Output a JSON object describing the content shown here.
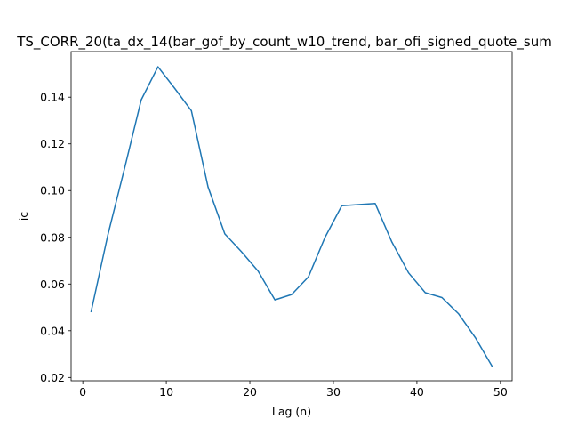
{
  "chart_data": {
    "type": "line",
    "title": "TS_CORR_20(ta_dx_14(bar_gof_by_count_w10_trend, bar_ofi_signed_quote_sum",
    "xlabel": "Lag (n)",
    "ylabel": "ic",
    "xlim": [
      -1.4,
      51.4
    ],
    "ylim": [
      0.0186,
      0.1595
    ],
    "x_ticks": [
      0,
      10,
      20,
      30,
      40,
      50
    ],
    "y_ticks": [
      0.02,
      0.04,
      0.06,
      0.08,
      0.1,
      0.12,
      0.14
    ],
    "y_tick_labels": [
      "0.02",
      "0.04",
      "0.06",
      "0.08",
      "0.10",
      "0.12",
      "0.14"
    ],
    "grid": false,
    "series": [
      {
        "color": "#1f77b4",
        "x": [
          1,
          3,
          5,
          7,
          9,
          11,
          13,
          15,
          17,
          19,
          21,
          23,
          25,
          27,
          29,
          31,
          33,
          35,
          37,
          39,
          41,
          43,
          45,
          47,
          49
        ],
        "y": [
          0.0482,
          0.081,
          0.1095,
          0.1389,
          0.153,
          0.1438,
          0.1342,
          0.1015,
          0.0815,
          0.0738,
          0.0655,
          0.0532,
          0.0555,
          0.063,
          0.08,
          0.0935,
          0.094,
          0.0945,
          0.078,
          0.0648,
          0.0563,
          0.0542,
          0.0472,
          0.037,
          0.0248
        ]
      }
    ]
  }
}
